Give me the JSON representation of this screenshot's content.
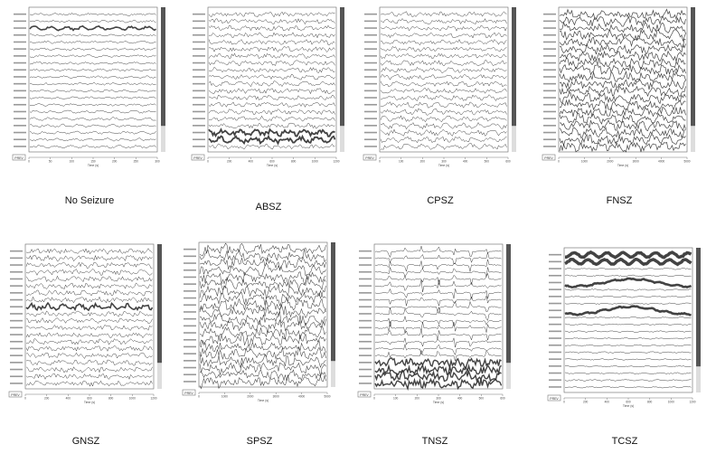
{
  "panels": [
    {
      "id": "no-seizure",
      "label": "No Seizure",
      "style": "normal",
      "x_ticks": [
        "0",
        "50",
        "100",
        "150",
        "200",
        "250",
        "300"
      ]
    },
    {
      "id": "absz",
      "label": "ABSZ",
      "style": "absz",
      "x_ticks": [
        "0",
        "200",
        "400",
        "600",
        "800",
        "1000",
        "1200"
      ]
    },
    {
      "id": "cpsz",
      "label": "CPSZ",
      "style": "cpsz",
      "x_ticks": [
        "0",
        "100",
        "200",
        "300",
        "400",
        "500",
        "600"
      ]
    },
    {
      "id": "fnsz",
      "label": "FNSZ",
      "style": "fnsz",
      "x_ticks": [
        "0",
        "1000",
        "2000",
        "3000",
        "4000",
        "5000"
      ]
    },
    {
      "id": "gnsz",
      "label": "GNSZ",
      "style": "gnsz",
      "x_ticks": [
        "0",
        "200",
        "400",
        "600",
        "800",
        "1000",
        "1200"
      ]
    },
    {
      "id": "spsz",
      "label": "SPSZ",
      "style": "spsz",
      "x_ticks": [
        "0",
        "1000",
        "2000",
        "3000",
        "4000",
        "5000"
      ]
    },
    {
      "id": "tnsz",
      "label": "TNSZ",
      "style": "tnsz",
      "x_ticks": [
        "0",
        "100",
        "200",
        "300",
        "400",
        "500",
        "600"
      ]
    },
    {
      "id": "tcsz",
      "label": "TCSZ",
      "style": "tcsz",
      "x_ticks": [
        "0",
        "200",
        "400",
        "600",
        "800",
        "1000",
        "1200"
      ]
    }
  ],
  "axis": {
    "xlabel": "Time (s)",
    "button": "PREV"
  },
  "colors": {
    "trace": "#222222",
    "border": "#666666",
    "scroll": "#555555",
    "channel_label": "#444444"
  }
}
